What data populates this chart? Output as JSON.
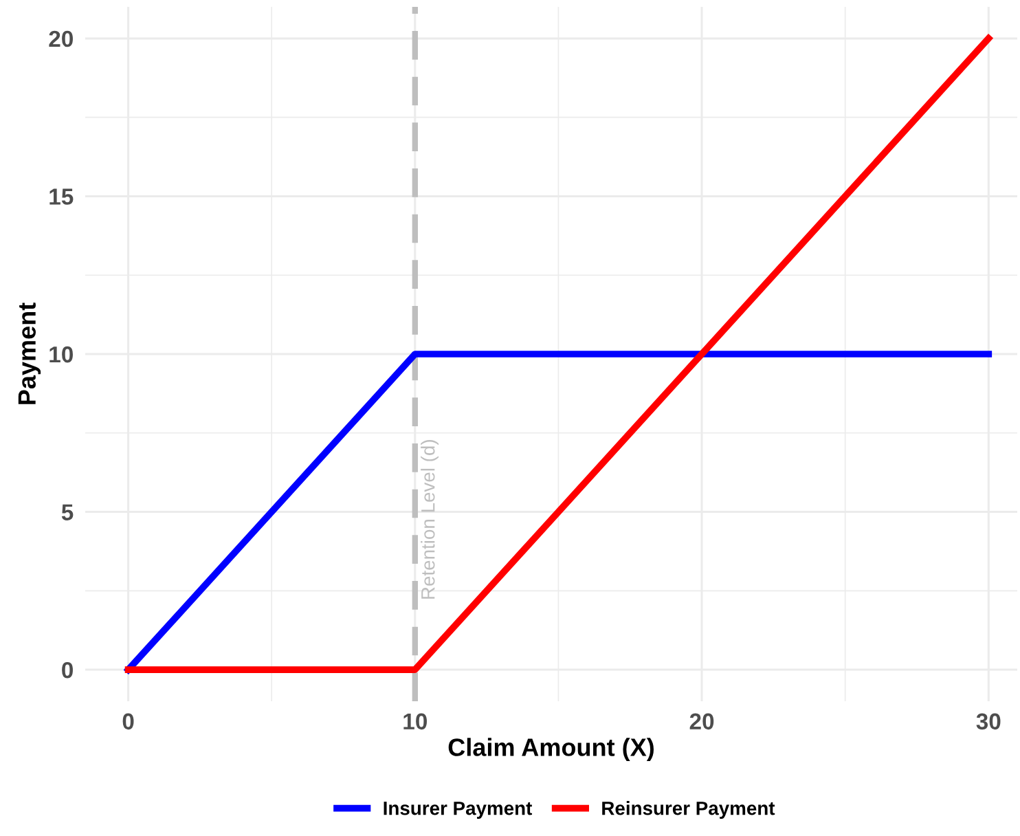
{
  "chart_data": {
    "type": "line",
    "xlabel": "Claim Amount (X)",
    "ylabel": "Payment",
    "series": [
      {
        "name": "Insurer Payment",
        "color": "#0000ff",
        "x": [
          0,
          10,
          30
        ],
        "values": [
          0,
          10,
          10
        ]
      },
      {
        "name": "Reinsurer Payment",
        "color": "#ff0000",
        "x": [
          0,
          10,
          30
        ],
        "values": [
          0,
          0,
          20
        ]
      }
    ],
    "xlim": [
      -1.5,
      31
    ],
    "xticks": [
      0,
      10,
      20,
      30
    ],
    "ylim": [
      -1,
      21
    ],
    "yticks": [
      0,
      5,
      10,
      15,
      20
    ],
    "ref_lines": [
      {
        "axis": "x",
        "value": 10,
        "label": "Retention Level (d)",
        "color": "#bebebe",
        "line_style": "dashed"
      }
    ],
    "grid": true,
    "legend": "bottom",
    "line_style": "solid",
    "marker": "none"
  }
}
